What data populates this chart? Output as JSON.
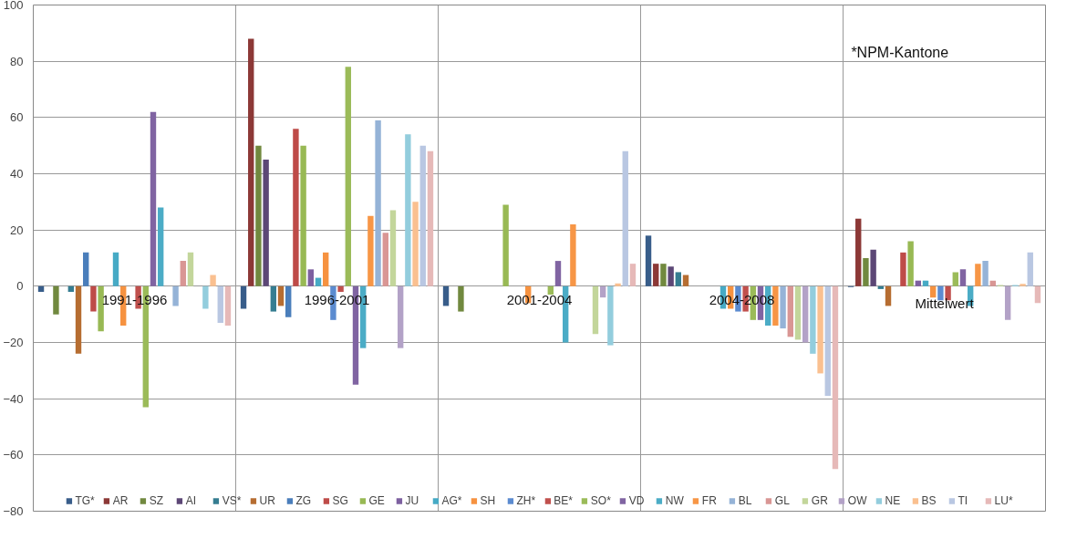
{
  "chart_data": {
    "type": "bar",
    "categories": [
      "1991-1996",
      "1996-2001",
      "2001-2004",
      "2004-2008",
      "Mittelwert"
    ],
    "ylim": [
      -80,
      100
    ],
    "yticks": [
      -80,
      -60,
      -40,
      -20,
      0,
      20,
      40,
      60,
      80,
      100
    ],
    "grid": true,
    "legend": "bottom",
    "annotations": [
      "*NPM-Kantone"
    ],
    "series": [
      {
        "name": "TG*",
        "color": "#385d8a",
        "values": [
          -2,
          -8,
          -7,
          18,
          -0.3
        ]
      },
      {
        "name": "AR",
        "color": "#8c3836",
        "values": [
          null,
          88,
          null,
          8,
          24
        ]
      },
      {
        "name": "SZ",
        "color": "#71893f",
        "values": [
          -10,
          50,
          -9,
          8,
          10
        ]
      },
      {
        "name": "AI",
        "color": "#5c4776",
        "values": [
          null,
          45,
          null,
          7,
          13
        ]
      },
      {
        "name": "VS*",
        "color": "#357d91",
        "values": [
          -2,
          -9,
          null,
          5,
          -1
        ]
      },
      {
        "name": "UR",
        "color": "#b66d31",
        "values": [
          -24,
          -7,
          null,
          4,
          -7
        ]
      },
      {
        "name": "ZG",
        "color": "#4a7ebb",
        "values": [
          12,
          -11,
          null,
          null,
          null
        ]
      },
      {
        "name": "SG",
        "color": "#be4b48",
        "values": [
          -9,
          56,
          null,
          null,
          12
        ]
      },
      {
        "name": "GE",
        "color": "#98b954",
        "values": [
          -16,
          50,
          29,
          null,
          16
        ]
      },
      {
        "name": "JU",
        "color": "#7d60a0",
        "values": [
          null,
          6,
          null,
          null,
          2
        ]
      },
      {
        "name": "AG*",
        "color": "#46aac5",
        "values": [
          12,
          3,
          null,
          -8,
          2
        ]
      },
      {
        "name": "SH",
        "color": "#f69240",
        "values": [
          -14,
          12,
          -6,
          -8,
          -4
        ]
      },
      {
        "name": "ZH*",
        "color": "#5b8bd0",
        "values": [
          null,
          -12,
          null,
          -9,
          -5
        ]
      },
      {
        "name": "BE*",
        "color": "#c0504d",
        "values": [
          -8,
          -2,
          null,
          -9,
          -5
        ]
      },
      {
        "name": "SO*",
        "color": "#9bbb59",
        "values": [
          -43,
          78,
          -3,
          -12,
          5
        ]
      },
      {
        "name": "VD",
        "color": "#8064a2",
        "values": [
          62,
          -35,
          9,
          -12,
          6
        ]
      },
      {
        "name": "NW",
        "color": "#4bacc6",
        "values": [
          28,
          -22,
          -20,
          -14,
          -7
        ]
      },
      {
        "name": "FR",
        "color": "#f79646",
        "values": [
          null,
          25,
          22,
          -14,
          8
        ]
      },
      {
        "name": "BL",
        "color": "#95b3d7",
        "values": [
          -7,
          59,
          null,
          -15,
          9
        ]
      },
      {
        "name": "GL",
        "color": "#d99694",
        "values": [
          9,
          19,
          null,
          -18,
          2
        ]
      },
      {
        "name": "GR",
        "color": "#c3d69b",
        "values": [
          12,
          27,
          -17,
          -19,
          0.4
        ]
      },
      {
        "name": "OW",
        "color": "#b3a2c7",
        "values": [
          null,
          -22,
          -4,
          -20,
          -12
        ]
      },
      {
        "name": "NE",
        "color": "#93cddd",
        "values": [
          -8,
          54,
          -21,
          -24,
          0.4
        ]
      },
      {
        "name": "BS",
        "color": "#fac090",
        "values": [
          4,
          30,
          1,
          -31,
          0.8
        ]
      },
      {
        "name": "TI",
        "color": "#b9c7e2",
        "values": [
          -13,
          50,
          48,
          -39,
          12
        ]
      },
      {
        "name": "LU*",
        "color": "#e6b9b8",
        "values": [
          -14,
          48,
          8,
          -65,
          -6
        ]
      }
    ]
  }
}
